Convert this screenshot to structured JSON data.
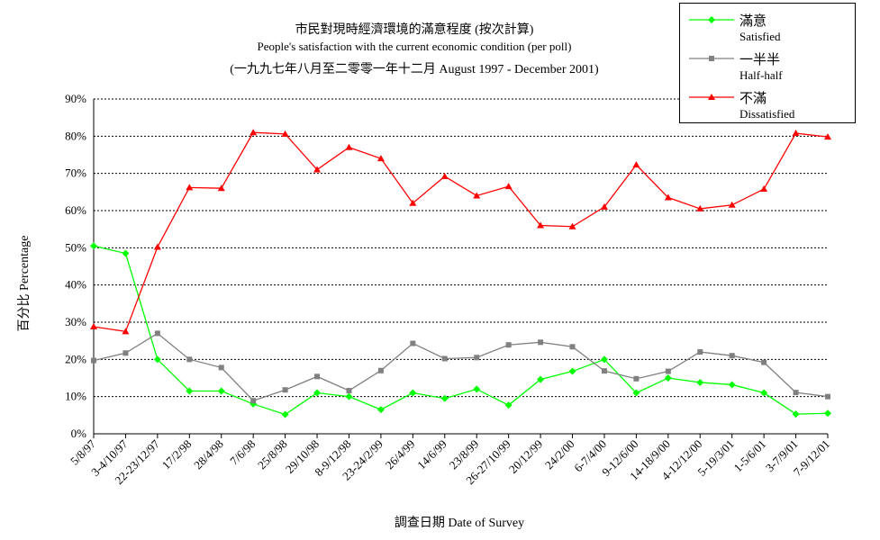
{
  "chart_data": {
    "type": "line",
    "title": "市民對現時經濟環境的滿意程度 (按次計算)",
    "subtitle": "People's satisfaction with the current economic condition  (per poll)",
    "subtitle2": "(一九九七年八月至二零零一年十二月 August 1997 - December 2001)",
    "xlabel": "調查日期 Date of Survey",
    "ylabel": "百分比 Percentage",
    "ylim": [
      0,
      90
    ],
    "yticks": [
      "0%",
      "10%",
      "20%",
      "30%",
      "40%",
      "50%",
      "60%",
      "70%",
      "80%",
      "90%"
    ],
    "grid": "horizontal dotted",
    "legend_position": "top-right",
    "categories": [
      "5/8/97",
      "3-4/10/97",
      "22-23/12/97",
      "17/2/98",
      "28/4/98",
      "7/6/98",
      "25/8/98",
      "29/10/98",
      "8-9/12/98",
      "23-24/2/99",
      "26/4/99",
      "14/6/99",
      "23/8/99",
      "26-27/10/99",
      "20/12/99",
      "24/2/00",
      "6-7/4/00",
      "9-12/6/00",
      "14-18/9/00",
      "4-12/12/00",
      "5-19/3/01",
      "1-5/6/01",
      "3-7/9/01",
      "7-9/12/01"
    ],
    "series": [
      {
        "name": "滿意",
        "name_en": "Satisfied",
        "color": "#00ff00",
        "marker": "diamond",
        "values": [
          50.5,
          48.5,
          20,
          11.5,
          11.5,
          8,
          5.2,
          11,
          10,
          6.5,
          11,
          9.5,
          12,
          7.7,
          14.6,
          16.8,
          20,
          11,
          15,
          13.8,
          13.2,
          11,
          5.3,
          5.5
        ]
      },
      {
        "name": "一半半",
        "name_en": "Half-half",
        "color": "#808080",
        "marker": "square",
        "values": [
          19.7,
          21.7,
          27,
          20,
          17.8,
          8.9,
          11.8,
          15.4,
          11.6,
          17,
          24.3,
          20.2,
          20.5,
          23.9,
          24.6,
          23.4,
          16.9,
          14.8,
          16.8,
          22,
          21,
          19.2,
          11.1,
          10
        ]
      },
      {
        "name": "不滿",
        "name_en": "Dissatisfied",
        "color": "#ff0000",
        "marker": "triangle",
        "values": [
          28.8,
          27.5,
          50.2,
          66.2,
          66,
          81,
          80.6,
          71,
          77,
          74,
          62,
          69.2,
          64,
          66.5,
          56,
          55.7,
          61,
          72.3,
          63.5,
          60.5,
          61.5,
          65.8,
          80.8,
          79.8
        ]
      }
    ]
  }
}
